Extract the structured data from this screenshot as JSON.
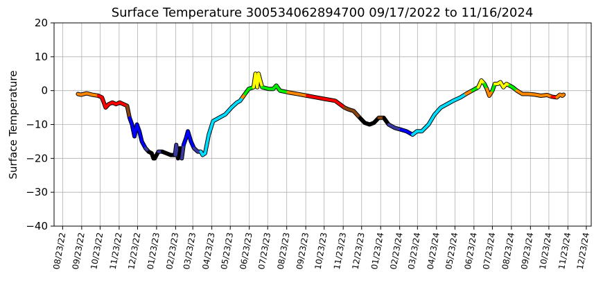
{
  "chart_data": {
    "type": "line",
    "title": "Surface Temperature 300534062894700  09/17/2022 to 11/16/2024",
    "xlabel": "",
    "ylabel": "Surface Temperature",
    "xlim": [
      "2022-08-09",
      "2024-12-31"
    ],
    "ylim": [
      -40,
      20
    ],
    "yticks": [
      20,
      10,
      0,
      -10,
      -20,
      -30,
      -40
    ],
    "xticks": [
      "08/23/22",
      "09/23/22",
      "10/23/22",
      "11/23/22",
      "12/23/22",
      "01/23/23",
      "02/23/23",
      "03/23/23",
      "04/23/23",
      "05/23/23",
      "06/23/23",
      "07/23/23",
      "08/23/23",
      "09/23/23",
      "10/23/23",
      "11/23/23",
      "12/23/23",
      "01/23/24",
      "02/23/24",
      "03/23/24",
      "04/23/24",
      "05/23/24",
      "06/23/24",
      "07/23/24",
      "08/23/24",
      "09/23/24",
      "10/23/24",
      "11/23/24",
      "12/23/24"
    ],
    "grid": true,
    "legend": "none",
    "color_by_value": true,
    "series": [
      {
        "x": [
          "2022-09-17",
          "2022-09-22",
          "2022-10-01",
          "2022-10-10",
          "2022-10-20",
          "2022-10-26",
          "2022-11-01",
          "2022-11-06",
          "2022-11-12",
          "2022-11-18",
          "2022-11-24",
          "2022-11-30",
          "2022-12-06",
          "2022-12-10",
          "2022-12-14",
          "2022-12-18",
          "2022-12-22",
          "2022-12-26",
          "2022-12-30",
          "2023-01-05",
          "2023-01-10",
          "2023-01-15",
          "2023-01-18",
          "2023-01-20",
          "2023-01-26",
          "2023-02-01",
          "2023-02-08",
          "2023-02-15",
          "2023-02-22",
          "2023-02-24",
          "2023-02-27",
          "2023-03-02",
          "2023-03-05",
          "2023-03-08",
          "2023-03-12",
          "2023-03-15",
          "2023-03-20",
          "2023-03-25",
          "2023-03-31",
          "2023-04-05",
          "2023-04-08",
          "2023-04-12",
          "2023-04-18",
          "2023-04-25",
          "2023-05-05",
          "2023-05-15",
          "2023-05-25",
          "2023-06-03",
          "2023-06-08",
          "2023-06-12",
          "2023-06-16",
          "2023-06-22",
          "2023-06-30",
          "2023-07-03",
          "2023-07-06",
          "2023-07-08",
          "2023-07-14",
          "2023-07-25",
          "2023-08-01",
          "2023-08-06",
          "2023-08-12",
          "2023-08-25",
          "2023-09-10",
          "2023-09-25",
          "2023-10-10",
          "2023-10-25",
          "2023-11-10",
          "2023-11-25",
          "2023-12-01",
          "2023-12-10",
          "2023-12-20",
          "2023-12-28",
          "2024-01-05",
          "2024-01-12",
          "2024-01-20",
          "2024-01-28",
          "2024-02-05",
          "2024-02-15",
          "2024-02-25",
          "2024-03-05",
          "2024-03-15",
          "2024-03-22",
          "2024-03-30",
          "2024-04-10",
          "2024-04-20",
          "2024-04-30",
          "2024-05-10",
          "2024-05-20",
          "2024-06-01",
          "2024-06-10",
          "2024-06-20",
          "2024-06-30",
          "2024-07-05",
          "2024-07-10",
          "2024-07-14",
          "2024-07-18",
          "2024-07-23",
          "2024-07-27",
          "2024-08-01",
          "2024-08-05",
          "2024-08-10",
          "2024-08-15",
          "2024-08-20",
          "2024-08-25",
          "2024-09-01",
          "2024-09-10",
          "2024-09-20",
          "2024-10-01",
          "2024-10-10",
          "2024-10-20",
          "2024-10-28",
          "2024-11-05",
          "2024-11-10",
          "2024-11-14",
          "2024-11-16"
        ],
        "y": [
          -1,
          -1.2,
          -0.8,
          -1.2,
          -1.5,
          -2,
          -5,
          -4,
          -3.5,
          -4,
          -3.5,
          -4,
          -4.5,
          -8,
          -10,
          -13.5,
          -10,
          -12,
          -15,
          -17,
          -18,
          -18.5,
          -20,
          -20,
          -18,
          -18,
          -18.5,
          -19,
          -19,
          -16,
          -20,
          -17,
          -20,
          -16,
          -14,
          -12,
          -15,
          -17,
          -18,
          -18,
          -19,
          -18.5,
          -13,
          -9,
          -8,
          -7,
          -5,
          -3.5,
          -3,
          -2,
          -1,
          0.5,
          1,
          5,
          1,
          5,
          1,
          0.5,
          0.5,
          1.5,
          0,
          -0.5,
          -1,
          -1.5,
          -2,
          -2.5,
          -3,
          -5,
          -5.5,
          -6,
          -8,
          -9.5,
          -10,
          -9.5,
          -8,
          -8,
          -10,
          -11,
          -11.5,
          -12,
          -13,
          -12,
          -12,
          -10,
          -7,
          -5,
          -4,
          -3,
          -2,
          -1,
          0,
          1,
          3,
          2,
          0.5,
          -1.5,
          0,
          2,
          2,
          2.5,
          1,
          2,
          1.5,
          1,
          0,
          -1,
          -1,
          -1.2,
          -1.5,
          -1.3,
          -1.8,
          -2,
          -1.2,
          -1.5,
          -1.2
        ]
      }
    ]
  }
}
